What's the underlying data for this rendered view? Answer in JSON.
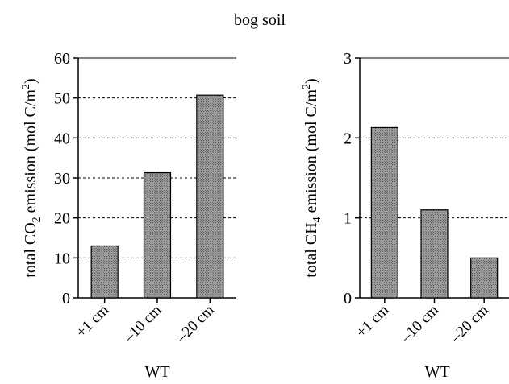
{
  "figure_title": "bog soil",
  "chart_data": [
    {
      "type": "bar",
      "categories": [
        "+1 cm",
        "–10 cm",
        "–20 cm"
      ],
      "values": [
        13,
        31.3,
        50.7
      ],
      "ylim": [
        0,
        60
      ],
      "yticks": [
        0,
        10,
        20,
        30,
        40,
        50,
        60
      ],
      "ylabel_prefix": "total CO",
      "ylabel_sub": "2",
      "ylabel_mid": " emission (mol C/m",
      "ylabel_sup": "2",
      "ylabel_suffix": ")",
      "xlabel": "WT",
      "grid": "horizontal dashed",
      "bar_fill": "#8a8a8a"
    },
    {
      "type": "bar",
      "categories": [
        "+1 cm",
        "–10 cm",
        "–20 cm"
      ],
      "values": [
        2.13,
        1.1,
        0.5
      ],
      "ylim": [
        0,
        3
      ],
      "yticks": [
        0,
        1,
        2,
        3
      ],
      "ylabel_prefix": "total CH",
      "ylabel_sub": "4",
      "ylabel_mid": " emission (mol C/m",
      "ylabel_sup": "2",
      "ylabel_suffix": ")",
      "xlabel": "WT",
      "grid": "horizontal dashed",
      "bar_fill": "#8a8a8a"
    }
  ]
}
